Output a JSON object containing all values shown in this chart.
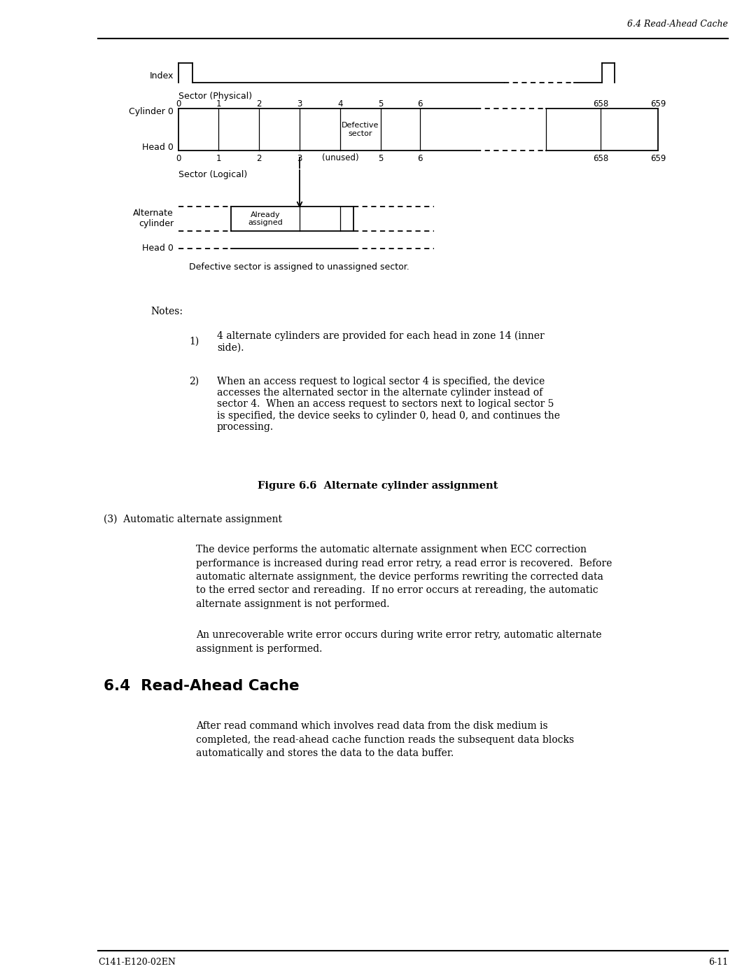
{
  "page_header": "6.4 Read-Ahead Cache",
  "footer_left": "C141-E120-02EN",
  "footer_right": "6-11",
  "phys_tick_labels": [
    "0",
    "1",
    "2",
    "3",
    "4",
    "5",
    "6",
    "658",
    "659"
  ],
  "log_tick_labels": [
    "0",
    "1",
    "2",
    "3",
    "(unused)",
    "5",
    "6",
    "658",
    "659"
  ],
  "defective_sector_label": "Defective\nsector",
  "already_assigned_label": "Already\nassigned",
  "defective_note": "Defective sector is assigned to unassigned sector.",
  "note1": "4 alternate cylinders are provided for each head in zone 14 (inner\nside).",
  "note2": "When an access request to logical sector 4 is specified, the device\naccesses the alternated sector in the alternate cylinder instead of\nsector 4.  When an access request to sectors next to logical sector 5\nis specified, the device seeks to cylinder 0, head 0, and continues the\nprocessing.",
  "figure_caption": "Figure 6.6  Alternate cylinder assignment",
  "section3_header": "(3)  Automatic alternate assignment",
  "section3_para1": "The device performs the automatic alternate assignment when ECC correction\nperformance is increased during read error retry, a read error is recovered.  Before\nautomatic alternate assignment, the device performs rewriting the corrected data\nto the erred sector and rereading.  If no error occurs at rereading, the automatic\nalternate assignment is not performed.",
  "section3_para2": "An unrecoverable write error occurs during write error retry, automatic alternate\nassignment is performed.",
  "section4_header": "6.4  Read-Ahead Cache",
  "section4_para": "After read command which involves read data from the disk medium is\ncompleted, the read-ahead cache function reads the subsequent data blocks\nautomatically and stores the data to the data buffer.",
  "bg_color": "#ffffff",
  "text_color": "#000000",
  "line_color": "#000000"
}
